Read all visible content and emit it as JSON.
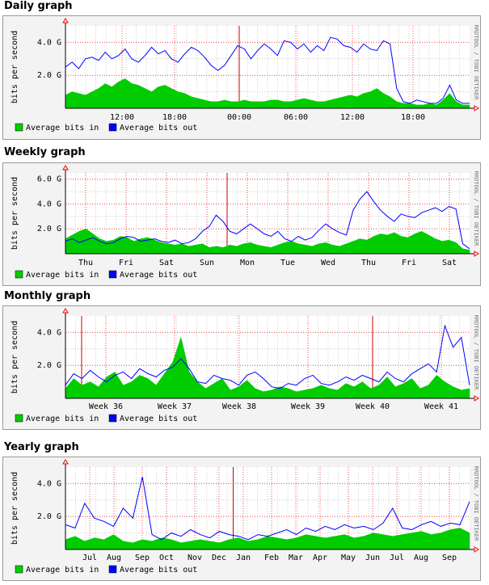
{
  "colors": {
    "in_fill": "#00cc00",
    "out_line": "#0000ff",
    "grid_major": "#ff0000",
    "grid_minor": "#ff0000",
    "background": "#f3f3f3",
    "plot_bg": "#ffffff"
  },
  "graphs": [
    {
      "section_title": "Daily graph",
      "ylabel": "bits per second",
      "side_label": "RRDTOOL / TOBI OETIKER",
      "yticks": [
        "2.0 G",
        "4.0 G"
      ],
      "xticks": [
        "12:00",
        "18:00",
        "00:00",
        "06:00",
        "12:00",
        "18:00"
      ],
      "legend": [
        "Average bits in",
        "Average bits out"
      ]
    },
    {
      "section_title": "Weekly graph",
      "ylabel": "bits per second",
      "side_label": "RRDTOOL / TOBI OETIKER",
      "yticks": [
        "2.0 G",
        "4.0 G",
        "6.0 G"
      ],
      "xticks": [
        "Thu",
        "Fri",
        "Sat",
        "Sun",
        "Mon",
        "Tue",
        "Wed",
        "Thu",
        "Fri",
        "Sat"
      ],
      "legend": [
        "Average bits in",
        "Average bits out"
      ]
    },
    {
      "section_title": "Monthly graph",
      "ylabel": "bits per second",
      "side_label": "RRDTOOL / TOBI OETIKER",
      "yticks": [
        "2.0 G",
        "4.0 G"
      ],
      "xticks": [
        "Week 36",
        "Week 37",
        "Week 38",
        "Week 39",
        "Week 40",
        "Week 41"
      ],
      "legend": [
        "Average bits in",
        "Average bits out"
      ]
    },
    {
      "section_title": "Yearly graph",
      "ylabel": "bits per second",
      "side_label": "RRDTOOL / TOBI OETIKER",
      "yticks": [
        "2.0 G",
        "4.0 G"
      ],
      "xticks": [
        "Jul",
        "Aug",
        "Sep",
        "Oct",
        "Nov",
        "Dec",
        "Jan",
        "Feb",
        "Mar",
        "Apr",
        "May",
        "Jun",
        "Jul",
        "Aug",
        "Sep"
      ],
      "legend": [
        "Average bits in",
        "Average bits out"
      ]
    }
  ],
  "chart_data": [
    {
      "type": "area",
      "title": "Daily graph",
      "ylabel": "bits per second",
      "ylim": [
        0,
        5.0
      ],
      "y_unit": "G",
      "x_tick_labels": [
        "12:00",
        "18:00",
        "00:00",
        "06:00",
        "12:00",
        "18:00"
      ],
      "series": [
        {
          "name": "Average bits in",
          "values": [
            0.8,
            1.0,
            0.9,
            0.8,
            1.0,
            1.2,
            1.5,
            1.3,
            1.6,
            1.8,
            1.5,
            1.4,
            1.2,
            1.0,
            1.3,
            1.4,
            1.2,
            1.0,
            0.9,
            0.7,
            0.6,
            0.5,
            0.4,
            0.4,
            0.5,
            0.4,
            0.4,
            0.5,
            0.4,
            0.4,
            0.4,
            0.5,
            0.5,
            0.4,
            0.4,
            0.5,
            0.6,
            0.5,
            0.4,
            0.4,
            0.5,
            0.6,
            0.7,
            0.8,
            0.7,
            0.9,
            1.0,
            1.2,
            0.9,
            0.7,
            0.4,
            0.3,
            0.3,
            0.2,
            0.2,
            0.3,
            0.2,
            0.5,
            0.9,
            0.4,
            0.2,
            0.2
          ]
        },
        {
          "name": "Average bits out",
          "values": [
            2.5,
            2.8,
            2.4,
            3.0,
            3.1,
            2.9,
            3.4,
            3.0,
            3.2,
            3.6,
            3.0,
            2.8,
            3.2,
            3.7,
            3.3,
            3.5,
            3.0,
            2.8,
            3.3,
            3.7,
            3.5,
            3.1,
            2.6,
            2.3,
            2.6,
            3.2,
            3.8,
            3.6,
            3.0,
            3.5,
            3.9,
            3.6,
            3.2,
            4.1,
            4.0,
            3.6,
            3.9,
            3.4,
            3.8,
            3.5,
            4.3,
            4.2,
            3.8,
            3.7,
            3.4,
            3.9,
            3.6,
            3.5,
            4.1,
            3.9,
            1.2,
            0.4,
            0.3,
            0.5,
            0.4,
            0.3,
            0.3,
            0.6,
            1.4,
            0.5,
            0.3,
            0.3
          ]
        }
      ]
    },
    {
      "type": "area",
      "title": "Weekly graph",
      "ylabel": "bits per second",
      "ylim": [
        0,
        6.5
      ],
      "y_unit": "G",
      "x_tick_labels": [
        "Thu",
        "Fri",
        "Sat",
        "Sun",
        "Mon",
        "Tue",
        "Wed",
        "Thu",
        "Fri",
        "Sat"
      ],
      "series": [
        {
          "name": "Average bits in",
          "values": [
            1.2,
            1.5,
            1.8,
            2.0,
            1.6,
            1.2,
            1.0,
            1.1,
            1.4,
            1.3,
            1.0,
            1.2,
            1.3,
            1.1,
            0.9,
            0.8,
            0.7,
            0.8,
            0.6,
            0.7,
            0.8,
            0.5,
            0.6,
            0.5,
            0.7,
            0.6,
            0.8,
            0.9,
            0.7,
            0.6,
            0.5,
            0.7,
            0.9,
            1.0,
            0.8,
            0.7,
            0.6,
            0.8,
            0.9,
            0.7,
            0.6,
            0.8,
            1.0,
            1.2,
            1.1,
            1.4,
            1.6,
            1.5,
            1.7,
            1.4,
            1.3,
            1.6,
            1.8,
            1.5,
            1.2,
            1.0,
            1.1,
            0.9,
            0.4,
            0.3
          ]
        },
        {
          "name": "Average bits out",
          "values": [
            1.0,
            1.2,
            0.9,
            1.1,
            1.3,
            1.0,
            0.8,
            0.9,
            1.2,
            1.4,
            1.3,
            1.0,
            1.1,
            1.2,
            1.0,
            0.9,
            1.1,
            0.8,
            0.9,
            1.2,
            1.8,
            2.2,
            3.1,
            2.6,
            1.8,
            1.6,
            2.0,
            2.4,
            2.0,
            1.6,
            1.4,
            1.8,
            1.2,
            1.0,
            1.4,
            1.1,
            1.3,
            1.9,
            2.4,
            2.0,
            1.7,
            1.5,
            3.5,
            4.4,
            5.0,
            4.2,
            3.5,
            3.0,
            2.6,
            3.2,
            3.0,
            2.9,
            3.3,
            3.5,
            3.7,
            3.4,
            3.8,
            3.6,
            0.8,
            0.4
          ]
        }
      ]
    },
    {
      "type": "area",
      "title": "Monthly graph",
      "ylabel": "bits per second",
      "ylim": [
        0,
        5.0
      ],
      "y_unit": "G",
      "x_tick_labels": [
        "Week 36",
        "Week 37",
        "Week 38",
        "Week 39",
        "Week 40",
        "Week 41"
      ],
      "series": [
        {
          "name": "Average bits in",
          "values": [
            0.6,
            1.2,
            0.8,
            1.0,
            0.7,
            1.3,
            1.6,
            0.8,
            1.0,
            1.4,
            1.2,
            0.8,
            1.5,
            2.2,
            3.7,
            1.6,
            1.0,
            0.6,
            0.9,
            1.2,
            0.5,
            0.7,
            1.1,
            0.6,
            0.4,
            0.5,
            0.7,
            0.6,
            0.4,
            0.5,
            0.6,
            0.8,
            0.6,
            0.5,
            0.9,
            0.7,
            1.0,
            0.6,
            0.8,
            1.3,
            0.7,
            0.9,
            1.2,
            0.6,
            0.8,
            1.4,
            1.0,
            0.7,
            0.5,
            0.6
          ]
        },
        {
          "name": "Average bits out",
          "values": [
            0.8,
            1.5,
            1.2,
            1.7,
            1.3,
            1.0,
            1.4,
            1.6,
            1.2,
            1.8,
            1.5,
            1.3,
            1.7,
            1.9,
            2.4,
            1.8,
            1.0,
            0.9,
            1.4,
            1.2,
            1.1,
            0.8,
            1.4,
            1.6,
            1.2,
            0.7,
            0.6,
            0.9,
            0.8,
            1.2,
            1.4,
            0.9,
            0.8,
            1.0,
            1.3,
            1.1,
            1.4,
            1.2,
            1.0,
            1.6,
            1.2,
            1.0,
            1.5,
            1.8,
            2.1,
            1.6,
            4.4,
            3.1,
            3.7,
            0.8
          ]
        }
      ]
    },
    {
      "type": "area",
      "title": "Yearly graph",
      "ylabel": "bits per second",
      "ylim": [
        0,
        5.0
      ],
      "y_unit": "G",
      "x_tick_labels": [
        "Jul",
        "Aug",
        "Sep",
        "Oct",
        "Nov",
        "Dec",
        "Jan",
        "Feb",
        "Mar",
        "Apr",
        "May",
        "Jun",
        "Jul",
        "Aug",
        "Sep"
      ],
      "series": [
        {
          "name": "Average bits in",
          "values": [
            0.6,
            0.8,
            0.5,
            0.7,
            0.6,
            0.9,
            0.5,
            0.4,
            0.6,
            0.5,
            0.7,
            0.6,
            0.4,
            0.5,
            0.6,
            0.5,
            0.4,
            0.6,
            0.7,
            0.5,
            0.6,
            0.8,
            0.7,
            0.6,
            0.7,
            0.9,
            0.8,
            0.7,
            0.8,
            0.9,
            0.7,
            0.8,
            1.0,
            0.9,
            0.8,
            0.9,
            1.0,
            1.1,
            0.9,
            1.0,
            1.2,
            1.3,
            1.0
          ]
        },
        {
          "name": "Average bits out",
          "values": [
            1.5,
            1.3,
            2.8,
            1.9,
            1.7,
            1.4,
            2.5,
            1.9,
            4.4,
            0.9,
            0.6,
            1.0,
            0.8,
            1.2,
            0.9,
            0.7,
            1.1,
            0.9,
            0.8,
            0.6,
            0.9,
            0.8,
            1.0,
            1.2,
            0.9,
            1.3,
            1.1,
            1.4,
            1.2,
            1.5,
            1.3,
            1.4,
            1.2,
            1.6,
            2.5,
            1.3,
            1.2,
            1.5,
            1.7,
            1.4,
            1.6,
            1.5,
            2.9
          ]
        }
      ]
    }
  ]
}
